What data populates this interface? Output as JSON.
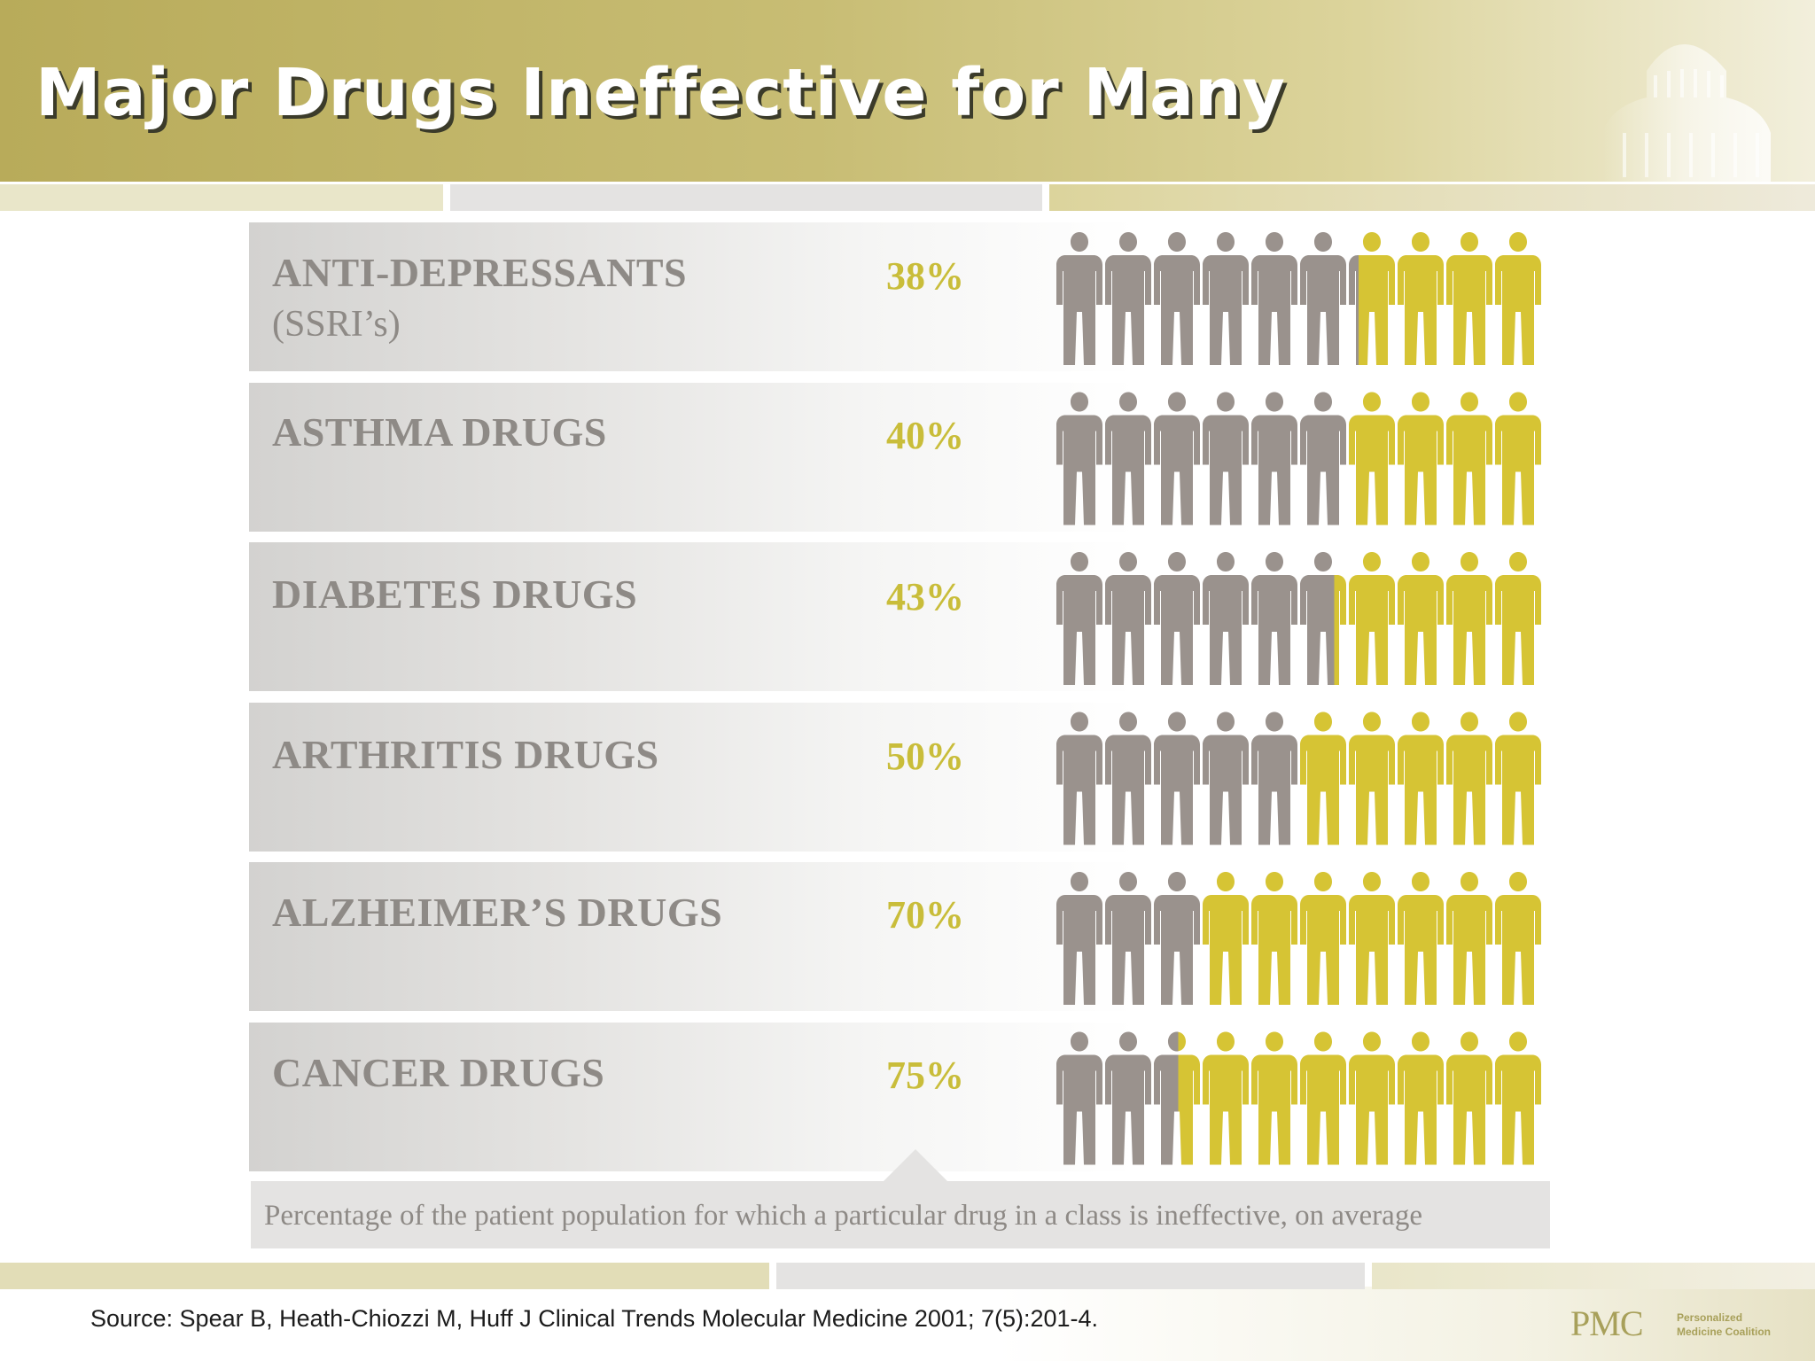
{
  "title": "Major Drugs Ineffective for Many",
  "colors": {
    "accent": "#b8ab5a",
    "ineffective": "#d6c434",
    "effective": "#9a928d",
    "label_gray": "#8e8a86"
  },
  "chart_data": {
    "type": "pictograph",
    "categories": [
      "ANTI-DEPRESSANTS",
      "ASTHMA DRUGS",
      "DIABETES DRUGS",
      "ARTHRITIS DRUGS",
      "ALZHEIMER’S DRUGS",
      "CANCER DRUGS"
    ],
    "category_notes": [
      "(SSRI’s)",
      "",
      "",
      "",
      "",
      ""
    ],
    "value_labels": [
      "38%",
      "40%",
      "43%",
      "50%",
      "70%",
      "75%"
    ],
    "values": [
      38,
      40,
      43,
      50,
      70,
      75
    ],
    "unit": "%",
    "icons_per_row": 10,
    "caption": "Percentage of the patient population for which a particular drug in a class is ineffective, on average"
  },
  "source": "Source: Spear B, Heath-Chiozzi M, Huff J  Clinical Trends Molecular Medicine 2001; 7(5):201-4.",
  "logo": {
    "mark": "PMC",
    "line1": "Personalized",
    "line2": "Medicine Coalition"
  }
}
